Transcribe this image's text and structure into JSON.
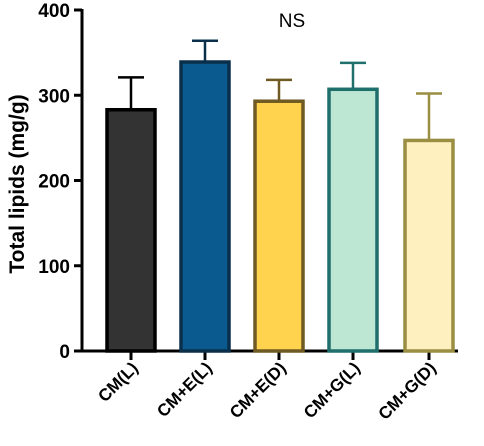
{
  "chart_data": {
    "type": "bar",
    "title": "",
    "annotation": "NS",
    "xlabel": "",
    "ylabel": "Total lipids (mg/g)",
    "ylim": [
      0,
      400
    ],
    "yticks": [
      0,
      100,
      200,
      300,
      400
    ],
    "ytick_labels": [
      "0",
      "100",
      "200",
      "300",
      "400"
    ],
    "grid": false,
    "legend": "none",
    "categories": [
      "CM(L)",
      "CM+E(L)",
      "CM+E(D)",
      "CM+G(L)",
      "CM+G(D)"
    ],
    "values": [
      283,
      339,
      293,
      307,
      247
    ],
    "error_upper": [
      38,
      25,
      25,
      31,
      55
    ],
    "colors": {
      "fills": [
        "#333333",
        "#0b5a8f",
        "#ffd34d",
        "#bde6d3",
        "#fff0c0"
      ],
      "strokes": [
        "#000000",
        "#0a2f4b",
        "#6e5a22",
        "#1f6f6c",
        "#9a8e42"
      ]
    }
  }
}
